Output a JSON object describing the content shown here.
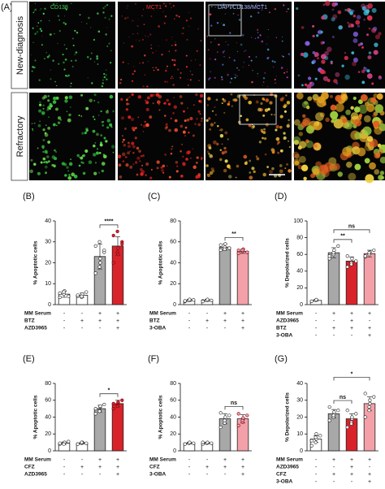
{
  "panel_a": {
    "label": "(A)",
    "row_labels": [
      "New-diagnosis",
      "Refractory"
    ],
    "channel_labels": [
      "CD138",
      "MCT1",
      "DAPI/CD138/MCT1"
    ]
  },
  "chart_data": [
    {
      "type": "bar",
      "panel": "(B)",
      "ylabel": "% Apoptotic cells",
      "ylim": [
        0,
        40
      ],
      "yticks": [
        0,
        10,
        20,
        30,
        40
      ],
      "values": [
        5,
        4.5,
        23,
        28
      ],
      "errors": [
        1.5,
        1,
        6,
        4.5
      ],
      "colors": [
        "#ffffff",
        "#ffffff",
        "#a8a8a8",
        "#d8232a"
      ],
      "point_colors": [
        "#ffffff",
        "#ffffff",
        "#ffffff",
        "#d8232a"
      ],
      "points": [
        [
          3.5,
          5,
          6.5,
          4,
          5.5,
          6
        ],
        [
          4,
          3.5,
          5,
          6,
          4.5,
          4
        ],
        [
          15,
          18,
          22,
          25,
          28,
          30,
          20,
          26
        ],
        [
          20,
          25,
          27,
          30,
          33,
          35,
          24,
          29
        ]
      ],
      "conditions": [
        {
          "name": "MM Serum",
          "marks": [
            "-",
            "-",
            "+",
            "+"
          ]
        },
        {
          "name": "BTZ",
          "marks": [
            "-",
            "+",
            "+",
            "+"
          ]
        },
        {
          "name": "AZD3965",
          "marks": [
            "-",
            "-",
            "-",
            "+"
          ]
        }
      ],
      "significance": [
        {
          "from": 2,
          "to": 3,
          "label": "****"
        }
      ]
    },
    {
      "type": "bar",
      "panel": "(C)",
      "ylabel": "% Apoptotic cells",
      "ylim": [
        0,
        80
      ],
      "yticks": [
        0,
        20,
        40,
        60,
        80
      ],
      "values": [
        4,
        4,
        55,
        51
      ],
      "errors": [
        1,
        1,
        3,
        2
      ],
      "colors": [
        "#ffffff",
        "#ffffff",
        "#a8a8a8",
        "#f4a0a8"
      ],
      "point_colors": [
        "#ffffff",
        "#ffffff",
        "#ffffff",
        "#f4a0a8"
      ],
      "points": [
        [
          3,
          4,
          5,
          4.5,
          3.5
        ],
        [
          3.5,
          4,
          5,
          4,
          3
        ],
        [
          52,
          55,
          58,
          54,
          57,
          53
        ],
        [
          49,
          51,
          53,
          50,
          52,
          52
        ]
      ],
      "conditions": [
        {
          "name": "MM Serum",
          "marks": [
            "-",
            "-",
            "+",
            "+"
          ]
        },
        {
          "name": "BTZ",
          "marks": [
            "-",
            "+",
            "+",
            "+"
          ]
        },
        {
          "name": "3-OBA",
          "marks": [
            "-",
            "-",
            "-",
            "+"
          ]
        }
      ],
      "significance": [
        {
          "from": 2,
          "to": 3,
          "label": "**"
        }
      ]
    },
    {
      "type": "bar",
      "panel": "(D)",
      "ylabel": "% Depolarized cells",
      "ylim": [
        0,
        100
      ],
      "yticks": [
        0,
        20,
        40,
        60,
        80,
        100
      ],
      "values": [
        5,
        62,
        52,
        61
      ],
      "errors": [
        1,
        6,
        5,
        4
      ],
      "colors": [
        "#ffffff",
        "#a8a8a8",
        "#d8232a",
        "#f4a0a8"
      ],
      "point_colors": [
        "#ffffff",
        "#ffffff",
        "#ffffff",
        "#ffffff"
      ],
      "points": [
        [
          4,
          5,
          6
        ],
        [
          55,
          60,
          65,
          70,
          58,
          62
        ],
        [
          45,
          50,
          55,
          52,
          58,
          48
        ],
        [
          57,
          60,
          63,
          65,
          58,
          62
        ]
      ],
      "conditions": [
        {
          "name": "MM Serum",
          "marks": [
            "-",
            "+",
            "+",
            "+"
          ]
        },
        {
          "name": "AZD3965",
          "marks": [
            "-",
            "-",
            "+",
            "-"
          ]
        },
        {
          "name": "BTZ",
          "marks": [
            "-",
            "+",
            "+",
            "+"
          ]
        },
        {
          "name": "3-OBA",
          "marks": [
            "-",
            "-",
            "-",
            "+"
          ]
        }
      ],
      "significance": [
        {
          "from": 1,
          "to": 2,
          "label": "**"
        },
        {
          "from": 1,
          "to": 3,
          "label": "ns"
        }
      ]
    },
    {
      "type": "bar",
      "panel": "(E)",
      "ylabel": "% Apoptotic cells",
      "ylim": [
        0,
        80
      ],
      "yticks": [
        0,
        20,
        40,
        60,
        80
      ],
      "values": [
        9,
        9,
        50,
        56
      ],
      "errors": [
        1.5,
        1,
        4,
        4
      ],
      "colors": [
        "#ffffff",
        "#ffffff",
        "#a8a8a8",
        "#d8232a"
      ],
      "point_colors": [
        "#ffffff",
        "#ffffff",
        "#ffffff",
        "#d8232a"
      ],
      "points": [
        [
          8,
          9,
          10,
          11,
          9,
          8
        ],
        [
          8,
          9,
          10,
          9,
          8,
          10
        ],
        [
          44,
          48,
          52,
          55,
          50,
          47,
          53
        ],
        [
          50,
          54,
          57,
          60,
          56,
          53,
          58
        ]
      ],
      "conditions": [
        {
          "name": "MM Serum",
          "marks": [
            "-",
            "-",
            "+",
            "+"
          ]
        },
        {
          "name": "CFZ",
          "marks": [
            "-",
            "+",
            "+",
            "+"
          ]
        },
        {
          "name": "AZD3965",
          "marks": [
            "-",
            "-",
            "-",
            "+"
          ]
        }
      ],
      "significance": [
        {
          "from": 2,
          "to": 3,
          "label": "*"
        }
      ]
    },
    {
      "type": "bar",
      "panel": "(F)",
      "ylabel": "% Apoptotic cells",
      "ylim": [
        0,
        80
      ],
      "yticks": [
        0,
        20,
        40,
        60,
        80
      ],
      "values": [
        9,
        9,
        38,
        38
      ],
      "errors": [
        1,
        1,
        6,
        5
      ],
      "colors": [
        "#ffffff",
        "#ffffff",
        "#a8a8a8",
        "#f4a0a8"
      ],
      "point_colors": [
        "#ffffff",
        "#ffffff",
        "#ffffff",
        "#f4a0a8"
      ],
      "points": [
        [
          8,
          9,
          10,
          9,
          8
        ],
        [
          8,
          9,
          10,
          9,
          10
        ],
        [
          28,
          33,
          38,
          42,
          45,
          36,
          40
        ],
        [
          30,
          34,
          38,
          42,
          44,
          36,
          39
        ]
      ],
      "conditions": [
        {
          "name": "MM Serum",
          "marks": [
            "-",
            "-",
            "+",
            "+"
          ]
        },
        {
          "name": "CFZ",
          "marks": [
            "-",
            "+",
            "+",
            "+"
          ]
        },
        {
          "name": "3-OBA",
          "marks": [
            "-",
            "-",
            "-",
            "+"
          ]
        }
      ],
      "significance": [
        {
          "from": 2,
          "to": 3,
          "label": "ns"
        }
      ]
    },
    {
      "type": "bar",
      "panel": "(G)",
      "ylabel": "% Depolarized cells",
      "ylim": [
        0,
        40
      ],
      "yticks": [
        0,
        10,
        20,
        30,
        40
      ],
      "values": [
        7,
        22,
        19,
        28
      ],
      "errors": [
        2,
        2.5,
        3,
        4
      ],
      "colors": [
        "#ffffff",
        "#a8a8a8",
        "#d8232a",
        "#f4a0a8"
      ],
      "point_colors": [
        "#ffffff",
        "#ffffff",
        "#ffffff",
        "#ffffff"
      ],
      "points": [
        [
          3,
          5,
          7,
          9,
          6,
          8,
          10
        ],
        [
          18,
          20,
          22,
          24,
          26,
          21,
          23
        ],
        [
          14,
          17,
          19,
          22,
          24,
          16,
          20
        ],
        [
          20,
          24,
          28,
          32,
          34,
          26,
          30
        ]
      ],
      "conditions": [
        {
          "name": "MM Serum",
          "marks": [
            "-",
            "+",
            "+",
            "+"
          ]
        },
        {
          "name": "AZD3965",
          "marks": [
            "-",
            "-",
            "+",
            "-"
          ]
        },
        {
          "name": "CFZ",
          "marks": [
            "-",
            "+",
            "+",
            "+"
          ]
        },
        {
          "name": "3-OBA",
          "marks": [
            "-",
            "-",
            "-",
            "+"
          ]
        }
      ],
      "significance": [
        {
          "from": 1,
          "to": 2,
          "label": "ns"
        },
        {
          "from": 1,
          "to": 3,
          "label": "*"
        }
      ]
    }
  ]
}
